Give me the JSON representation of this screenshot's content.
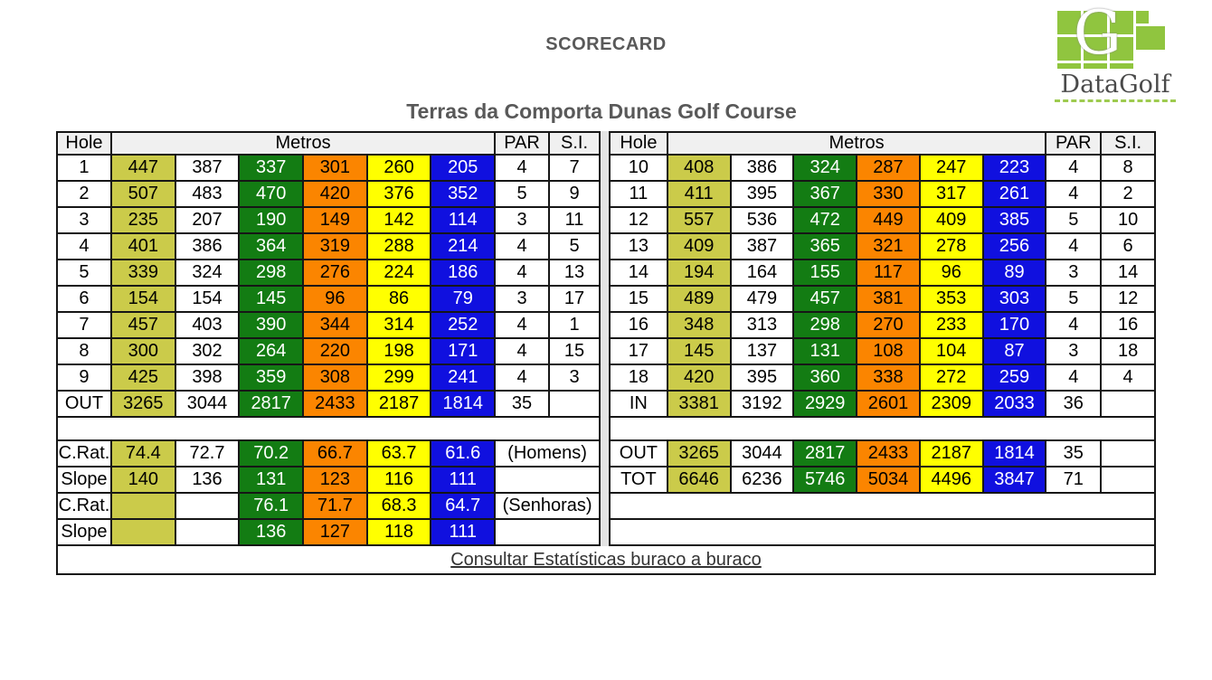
{
  "header": {
    "title": "SCORECARD",
    "course_title": "Terras da Comporta Dunas Golf Course"
  },
  "logo": {
    "name": "DataGolf",
    "letter": "G",
    "green": "#90C53F"
  },
  "colors": {
    "tee_olive": "#CBCB4A",
    "tee_white": "#FFFFFF",
    "tee_green": "#137C13",
    "tee_orange": "#FB8500",
    "tee_yellow": "#FFFF00",
    "tee_blue": "#1010DF",
    "header_bg": "#F0F0F0",
    "border": "#161616",
    "title_gray": "#595959"
  },
  "table_headers": {
    "hole": "Hole",
    "metros": "Metros",
    "par": "PAR",
    "si": "S.I."
  },
  "front_nine": {
    "rows": [
      {
        "hole": "1",
        "metros": [
          "447",
          "387",
          "337",
          "301",
          "260",
          "205"
        ],
        "par": "4",
        "si": "7"
      },
      {
        "hole": "2",
        "metros": [
          "507",
          "483",
          "470",
          "420",
          "376",
          "352"
        ],
        "par": "5",
        "si": "9"
      },
      {
        "hole": "3",
        "metros": [
          "235",
          "207",
          "190",
          "149",
          "142",
          "114"
        ],
        "par": "3",
        "si": "11"
      },
      {
        "hole": "4",
        "metros": [
          "401",
          "386",
          "364",
          "319",
          "288",
          "214"
        ],
        "par": "4",
        "si": "5"
      },
      {
        "hole": "5",
        "metros": [
          "339",
          "324",
          "298",
          "276",
          "224",
          "186"
        ],
        "par": "4",
        "si": "13"
      },
      {
        "hole": "6",
        "metros": [
          "154",
          "154",
          "145",
          "96",
          "86",
          "79"
        ],
        "par": "3",
        "si": "17"
      },
      {
        "hole": "7",
        "metros": [
          "457",
          "403",
          "390",
          "344",
          "314",
          "252"
        ],
        "par": "4",
        "si": "1"
      },
      {
        "hole": "8",
        "metros": [
          "300",
          "302",
          "264",
          "220",
          "198",
          "171"
        ],
        "par": "4",
        "si": "15"
      },
      {
        "hole": "9",
        "metros": [
          "425",
          "398",
          "359",
          "308",
          "299",
          "241"
        ],
        "par": "4",
        "si": "3"
      },
      {
        "hole": "OUT",
        "metros": [
          "3265",
          "3044",
          "2817",
          "2433",
          "2187",
          "1814"
        ],
        "par": "35",
        "si": ""
      }
    ]
  },
  "back_nine": {
    "rows": [
      {
        "hole": "10",
        "metros": [
          "408",
          "386",
          "324",
          "287",
          "247",
          "223"
        ],
        "par": "4",
        "si": "8"
      },
      {
        "hole": "11",
        "metros": [
          "411",
          "395",
          "367",
          "330",
          "317",
          "261"
        ],
        "par": "4",
        "si": "2"
      },
      {
        "hole": "12",
        "metros": [
          "557",
          "536",
          "472",
          "449",
          "409",
          "385"
        ],
        "par": "5",
        "si": "10"
      },
      {
        "hole": "13",
        "metros": [
          "409",
          "387",
          "365",
          "321",
          "278",
          "256"
        ],
        "par": "4",
        "si": "6"
      },
      {
        "hole": "14",
        "metros": [
          "194",
          "164",
          "155",
          "117",
          "96",
          "89"
        ],
        "par": "3",
        "si": "14"
      },
      {
        "hole": "15",
        "metros": [
          "489",
          "479",
          "457",
          "381",
          "353",
          "303"
        ],
        "par": "5",
        "si": "12"
      },
      {
        "hole": "16",
        "metros": [
          "348",
          "313",
          "298",
          "270",
          "233",
          "170"
        ],
        "par": "4",
        "si": "16"
      },
      {
        "hole": "17",
        "metros": [
          "145",
          "137",
          "131",
          "108",
          "104",
          "87"
        ],
        "par": "3",
        "si": "18"
      },
      {
        "hole": "18",
        "metros": [
          "420",
          "395",
          "360",
          "338",
          "272",
          "259"
        ],
        "par": "4",
        "si": "4"
      },
      {
        "hole": "IN",
        "metros": [
          "3381",
          "3192",
          "2929",
          "2601",
          "2309",
          "2033"
        ],
        "par": "36",
        "si": ""
      }
    ]
  },
  "ratings": {
    "rows": [
      {
        "label": "C.Rat.",
        "values": [
          "74.4",
          "72.7",
          "70.2",
          "66.7",
          "63.7",
          "61.6"
        ],
        "note": "(Homens)"
      },
      {
        "label": "Slope",
        "values": [
          "140",
          "136",
          "131",
          "123",
          "116",
          "111"
        ],
        "note": ""
      },
      {
        "label": "C.Rat.",
        "values": [
          "",
          "",
          "76.1",
          "71.7",
          "68.3",
          "64.7"
        ],
        "note": "(Senhoras)"
      },
      {
        "label": "Slope",
        "values": [
          "",
          "",
          "136",
          "127",
          "118",
          "111"
        ],
        "note": ""
      }
    ]
  },
  "totals": {
    "rows": [
      {
        "label": "OUT",
        "values": [
          "3265",
          "3044",
          "2817",
          "2433",
          "2187",
          "1814"
        ],
        "par": "35",
        "si": ""
      },
      {
        "label": "TOT",
        "values": [
          "6646",
          "6236",
          "5746",
          "5034",
          "4496",
          "3847"
        ],
        "par": "71",
        "si": ""
      }
    ],
    "empty_rows": 2
  },
  "footer": {
    "link_text": "Consultar Estatísticas buraco a buraco"
  }
}
